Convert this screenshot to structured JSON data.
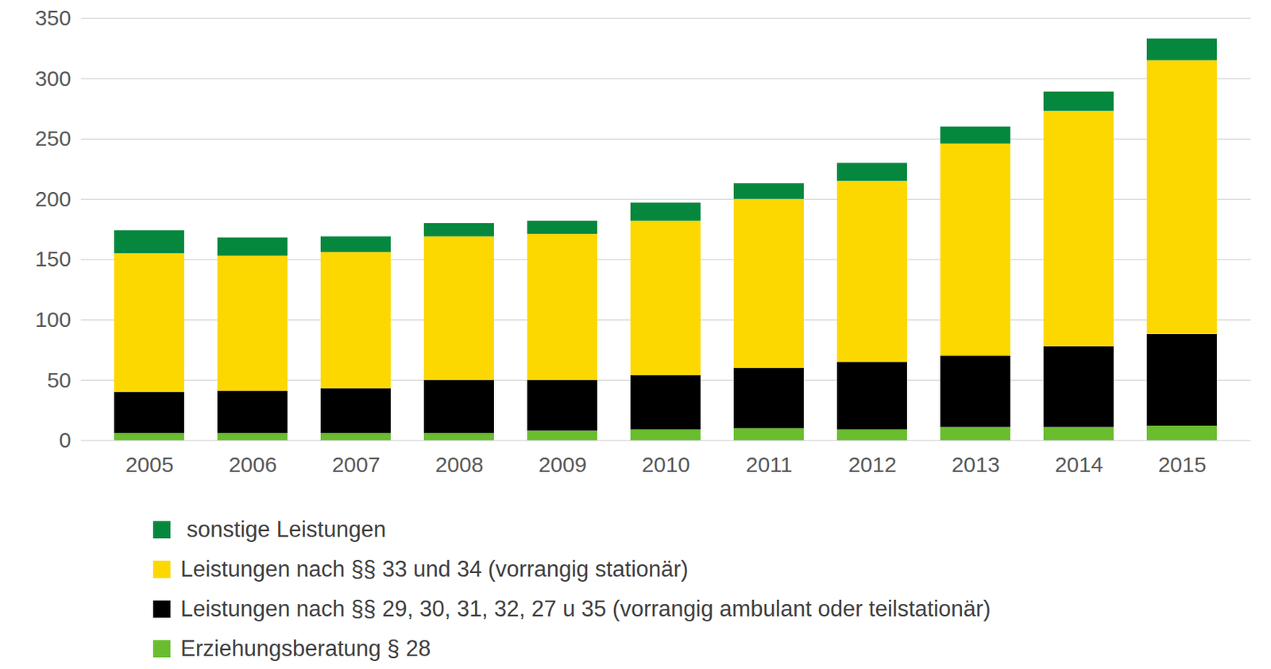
{
  "chart_data": {
    "type": "bar",
    "stacked": true,
    "grid": true,
    "categories": [
      "2005",
      "2006",
      "2007",
      "2008",
      "2009",
      "2010",
      "2011",
      "2012",
      "2013",
      "2014",
      "2015"
    ],
    "ylim": [
      0,
      350
    ],
    "yticks": [
      0,
      50,
      100,
      150,
      200,
      250,
      300,
      350
    ],
    "series": [
      {
        "name": "Erziehungsberatung § 28",
        "color": "#6abd2f",
        "values": [
          6,
          6,
          6,
          6,
          8,
          9,
          10,
          9,
          11,
          11,
          12
        ]
      },
      {
        "name": "Leistungen nach §§ 29, 30, 31, 32, 27 u 35 (vorrangig ambulant oder teilstationär)",
        "color": "#000000",
        "values": [
          34,
          35,
          37,
          44,
          42,
          45,
          50,
          56,
          59,
          67,
          76
        ]
      },
      {
        "name": "Leistungen nach §§ 33 und 34 (vorrangig stationär)",
        "color": "#fcd800",
        "values": [
          115,
          112,
          113,
          119,
          121,
          128,
          140,
          150,
          176,
          195,
          227
        ]
      },
      {
        "name": " sonstige Leistungen",
        "color": "#06873e",
        "values": [
          19,
          15,
          13,
          11,
          11,
          15,
          13,
          15,
          14,
          16,
          18
        ]
      }
    ]
  }
}
